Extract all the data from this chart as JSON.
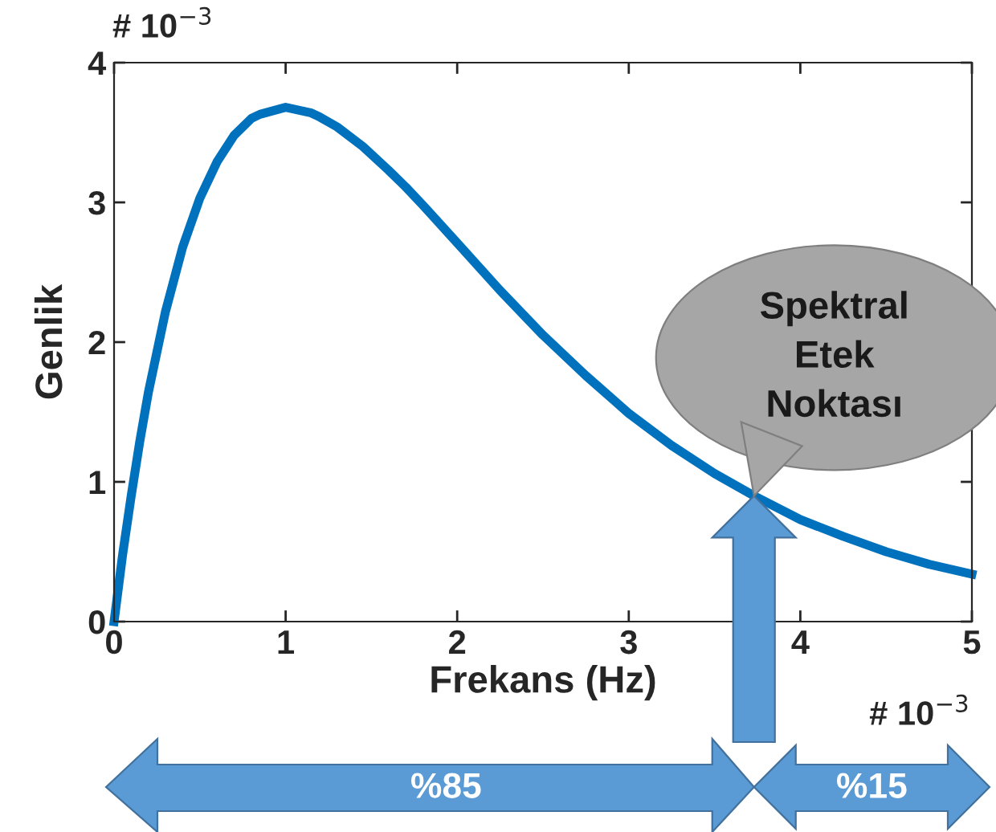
{
  "chart_data": {
    "type": "line",
    "xlabel": "Frekans (Hz)",
    "ylabel": "Genlik",
    "x": [
      0,
      0.05,
      0.1,
      0.15,
      0.2,
      0.3,
      0.4,
      0.5,
      0.6,
      0.7,
      0.8,
      0.85,
      1,
      1.15,
      1.2,
      1.3,
      1.45,
      1.6,
      1.7,
      1.8,
      2,
      2.25,
      2.5,
      2.75,
      3,
      3.25,
      3.5,
      3.73,
      4,
      4.25,
      4.5,
      4.75,
      5
    ],
    "series": [
      {
        "color": "#0072bd",
        "values": [
          0,
          0.48,
          0.9,
          1.29,
          1.64,
          2.22,
          2.68,
          3.03,
          3.29,
          3.48,
          3.6,
          3.63,
          3.68,
          3.64,
          3.61,
          3.54,
          3.4,
          3.23,
          3.11,
          2.98,
          2.71,
          2.37,
          2.05,
          1.76,
          1.49,
          1.26,
          1.06,
          0.9,
          0.73,
          0.61,
          0.5,
          0.41,
          0.34
        ]
      }
    ],
    "xlim": [
      0,
      5
    ],
    "xticks": [
      0,
      1,
      2,
      3,
      4,
      5
    ],
    "ylim": [
      0,
      4
    ],
    "yticks": [
      0,
      1,
      2,
      3,
      4
    ],
    "grid": false,
    "marker": "none",
    "line_style": "solid",
    "annotations": [
      "# 10$^{−3}$",
      "# 10$^{−3}$",
      {
        "text": "Spektral\nEtek\nNoktası",
        "x": 3.73,
        "y": 0.9
      },
      "%85",
      "%15"
    ]
  }
}
